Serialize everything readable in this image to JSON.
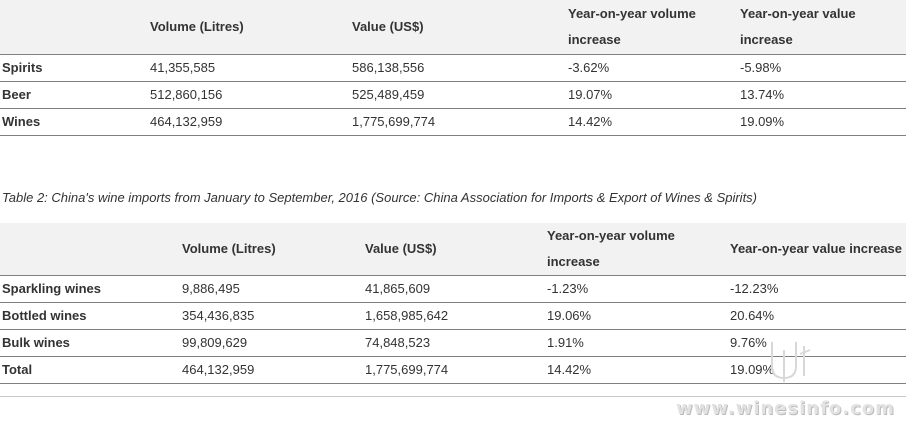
{
  "table1": {
    "headers": [
      "",
      "Volume (Litres)",
      "Value (US$)",
      "Year-on-year volume increase",
      "Year-on-year value increase"
    ],
    "rows": [
      [
        "Spirits",
        "41,355,585",
        "586,138,556",
        "-3.62%",
        "-5.98%"
      ],
      [
        "Beer",
        "512,860,156",
        "525,489,459",
        "19.07%",
        "13.74%"
      ],
      [
        "Wines",
        "464,132,959",
        "1,775,699,774",
        "14.42%",
        "19.09%"
      ]
    ]
  },
  "caption2": "Table 2: China's wine imports from January to September, 2016 (Source: China Association for Imports & Export of Wines & Spirits)",
  "table2": {
    "headers": [
      "",
      "Volume (Litres)",
      "Value (US$)",
      "Year-on-year volume increase",
      "Year-on-year value increase"
    ],
    "rows": [
      [
        "Sparkling wines",
        "9,886,495",
        "41,865,609",
        "-1.23%",
        "-12.23%"
      ],
      [
        "Bottled wines",
        "354,436,835",
        "1,658,985,642",
        "19.06%",
        "20.64%"
      ],
      [
        "Bulk wines",
        "99,809,629",
        "74,848,523",
        "1.91%",
        "9.76%"
      ],
      [
        "Total",
        "464,132,959",
        "1,775,699,774",
        "14.42%",
        "19.09%"
      ]
    ]
  },
  "watermark": "www.winesinfo.com",
  "colors": {
    "header_bg": "#f2f2f2",
    "rule": "#7f7f7f",
    "text": "#333333"
  }
}
